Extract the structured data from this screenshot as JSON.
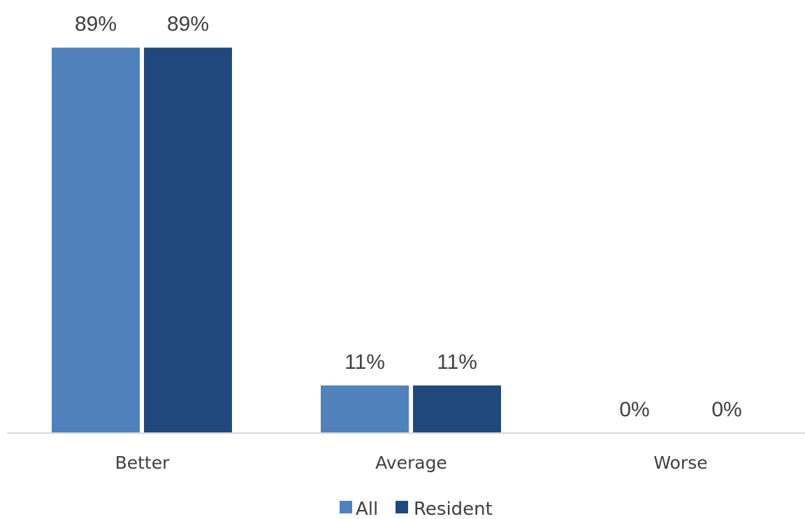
{
  "chart_data": {
    "type": "bar",
    "title": "",
    "xlabel": "",
    "ylabel": "",
    "categories": [
      "Better",
      "Average",
      "Worse"
    ],
    "series": [
      {
        "name": "All",
        "values": [
          89,
          11,
          0
        ],
        "labels": [
          "89%",
          "11%",
          "0%"
        ],
        "color": "#4f81bd"
      },
      {
        "name": "Resident",
        "values": [
          89,
          11,
          0
        ],
        "labels": [
          "89%",
          "11%",
          "0%"
        ],
        "color": "#1f497d"
      }
    ],
    "ylim": [
      0,
      100
    ],
    "grid": false,
    "legend": "bottom-center"
  }
}
